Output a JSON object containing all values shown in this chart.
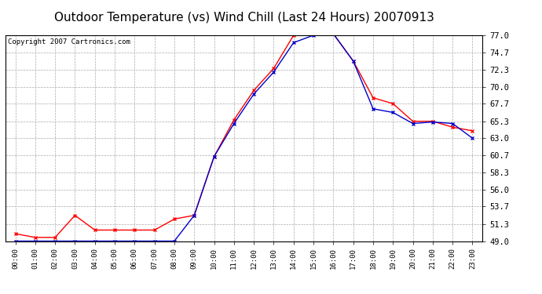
{
  "title": "Outdoor Temperature (vs) Wind Chill (Last 24 Hours) 20070913",
  "copyright": "Copyright 2007 Cartronics.com",
  "hours": [
    "00:00",
    "01:00",
    "02:00",
    "03:00",
    "04:00",
    "05:00",
    "06:00",
    "07:00",
    "08:00",
    "09:00",
    "10:00",
    "11:00",
    "12:00",
    "13:00",
    "14:00",
    "15:00",
    "16:00",
    "17:00",
    "18:00",
    "19:00",
    "20:00",
    "21:00",
    "22:00",
    "23:00"
  ],
  "outdoor_temp": [
    50.0,
    49.5,
    49.5,
    52.5,
    50.5,
    50.5,
    50.5,
    50.5,
    52.0,
    52.5,
    60.5,
    65.5,
    69.5,
    72.5,
    77.0,
    77.2,
    77.2,
    73.5,
    68.5,
    67.7,
    65.3,
    65.3,
    64.5,
    64.0
  ],
  "wind_chill": [
    49.0,
    49.0,
    49.0,
    49.0,
    49.0,
    49.0,
    49.0,
    49.0,
    49.0,
    52.5,
    60.5,
    65.0,
    69.0,
    72.0,
    76.0,
    77.0,
    77.2,
    73.5,
    67.0,
    66.5,
    65.0,
    65.2,
    65.0,
    63.0
  ],
  "outdoor_color": "#ff0000",
  "windchill_color": "#0000cc",
  "bg_color": "#ffffff",
  "plot_bg_color": "#ffffff",
  "grid_color": "#aaaaaa",
  "ylim": [
    49.0,
    77.0
  ],
  "yticks": [
    49.0,
    51.3,
    53.7,
    56.0,
    58.3,
    60.7,
    63.0,
    65.3,
    67.7,
    70.0,
    72.3,
    74.7,
    77.0
  ],
  "title_fontsize": 11,
  "copyright_fontsize": 6.5
}
